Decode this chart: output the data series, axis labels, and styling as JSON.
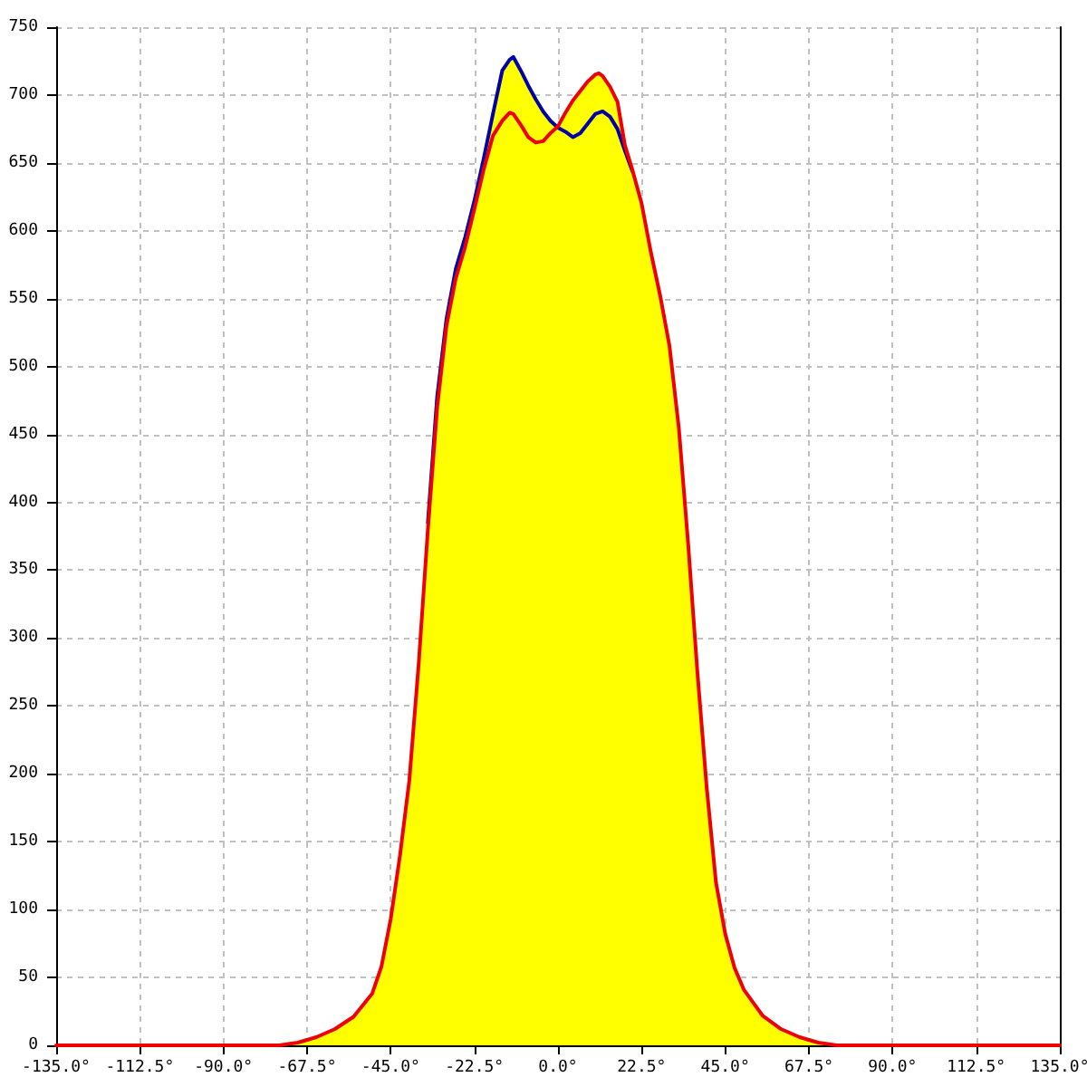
{
  "chart_data": {
    "type": "line",
    "x": [
      -135,
      -90,
      -80,
      -75,
      -70,
      -65,
      -60,
      -55,
      -50,
      -47.5,
      -45,
      -42.5,
      -40,
      -37.5,
      -35,
      -32.5,
      -30,
      -27.5,
      -25,
      -22.5,
      -20,
      -17.5,
      -15,
      -13,
      -12,
      -10,
      -8,
      -6,
      -4,
      -2,
      0,
      2,
      4,
      6,
      8,
      10,
      11,
      12,
      14,
      16,
      18,
      20,
      22.5,
      25,
      27.5,
      30,
      32.5,
      35,
      37.5,
      40,
      42.5,
      45,
      47.5,
      50,
      55,
      60,
      65,
      70,
      75,
      80,
      90,
      135
    ],
    "series": [
      {
        "type": "area",
        "color": "#ffff00",
        "x": [
          -75,
          -70,
          -65,
          -60,
          -55,
          -50,
          -47.5,
          -45,
          -42.5,
          -40,
          -37.5,
          -35,
          -32.5,
          -30,
          -27.5,
          -25,
          -22.5,
          -20,
          -17.5,
          -15,
          -13,
          -12,
          -10,
          -8,
          -6,
          -4,
          -2,
          0,
          2,
          4,
          6,
          8,
          10,
          11,
          12,
          14,
          16,
          18,
          20,
          22.5,
          25,
          27.5,
          30,
          32.5,
          35,
          37.5,
          40,
          42.5,
          45,
          47.5,
          50,
          55,
          60,
          65,
          70,
          75
        ],
        "values": [
          0,
          2,
          6,
          12,
          21,
          38,
          58,
          93,
          140,
          195,
          280,
          385,
          478,
          535,
          572,
          595,
          622,
          653,
          686,
          718,
          726,
          728,
          718,
          707,
          697,
          688,
          681,
          677,
          687,
          696,
          703,
          710,
          715,
          716,
          714,
          706,
          695,
          663,
          645,
          620,
          584,
          552,
          515,
          455,
          370,
          275,
          190,
          120,
          82,
          57,
          41,
          22,
          12,
          6,
          2,
          0
        ]
      },
      {
        "color": "#0000aa",
        "values": [
          null,
          null,
          null,
          null,
          null,
          null,
          null,
          null,
          null,
          null,
          null,
          null,
          null,
          null,
          385,
          478,
          535,
          572,
          595,
          622,
          653,
          686,
          718,
          726,
          728,
          718,
          707,
          697,
          688,
          681,
          676,
          673,
          669,
          672,
          679,
          686,
          687,
          688,
          684,
          675,
          659,
          644,
          null,
          null,
          null,
          null,
          null,
          null,
          null,
          null,
          null,
          null,
          null,
          null,
          null,
          null,
          null,
          null,
          null,
          null,
          null,
          null
        ]
      },
      {
        "color": "#ee0000",
        "values": [
          0,
          0,
          0,
          0,
          2,
          6,
          12,
          21,
          38,
          58,
          93,
          140,
          195,
          280,
          380,
          470,
          530,
          565,
          588,
          616,
          645,
          670,
          681,
          687,
          686,
          678,
          669,
          665,
          666,
          672,
          677,
          687,
          696,
          703,
          710,
          715,
          716,
          714,
          706,
          695,
          663,
          645,
          620,
          584,
          552,
          515,
          455,
          370,
          275,
          190,
          120,
          82,
          57,
          41,
          22,
          12,
          6,
          2,
          0,
          0,
          0,
          0
        ]
      }
    ],
    "xlim": [
      -135,
      135
    ],
    "xticks": [
      {
        "value": -135,
        "label": "-135.0°"
      },
      {
        "value": -112.5,
        "label": "-112.5°"
      },
      {
        "value": -90,
        "label": "-90.0°"
      },
      {
        "value": -67.5,
        "label": "-67.5°"
      },
      {
        "value": -45,
        "label": "-45.0°"
      },
      {
        "value": -22.5,
        "label": "-22.5°"
      },
      {
        "value": 0,
        "label": "0.0°"
      },
      {
        "value": 22.5,
        "label": "22.5°"
      },
      {
        "value": 45,
        "label": "45.0°"
      },
      {
        "value": 67.5,
        "label": "67.5°"
      },
      {
        "value": 90,
        "label": "90.0°"
      },
      {
        "value": 112.5,
        "label": "112.5°"
      },
      {
        "value": 135,
        "label": "135.0°"
      }
    ],
    "ylim": [
      0,
      750
    ],
    "yticks": [
      0,
      50,
      100,
      150,
      200,
      250,
      300,
      350,
      400,
      450,
      500,
      550,
      600,
      650,
      700,
      750
    ],
    "grid": true
  }
}
